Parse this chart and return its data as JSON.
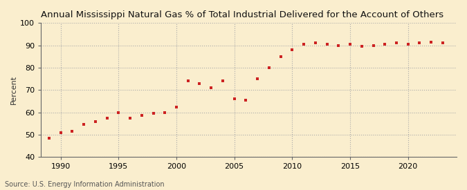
{
  "title": "Annual Mississippi Natural Gas % of Total Industrial Delivered for the Account of Others",
  "ylabel": "Percent",
  "source": "Source: U.S. Energy Information Administration",
  "years": [
    1989,
    1990,
    1991,
    1992,
    1993,
    1994,
    1995,
    1996,
    1997,
    1998,
    1999,
    2000,
    2001,
    2002,
    2003,
    2004,
    2005,
    2006,
    2007,
    2008,
    2009,
    2010,
    2011,
    2012,
    2013,
    2014,
    2015,
    2016,
    2017,
    2018,
    2019,
    2020,
    2021,
    2022,
    2023
  ],
  "values": [
    48.5,
    51.0,
    51.5,
    54.5,
    56.0,
    57.5,
    60.0,
    57.5,
    58.5,
    59.5,
    60.0,
    62.5,
    74.0,
    73.0,
    71.0,
    74.0,
    66.0,
    65.5,
    75.0,
    80.0,
    85.0,
    88.0,
    90.5,
    91.0,
    90.5,
    90.0,
    90.5,
    89.5,
    90.0,
    90.5,
    91.0,
    90.5,
    91.0,
    91.5,
    91.0
  ],
  "ylim": [
    40,
    100
  ],
  "yticks": [
    40,
    50,
    60,
    70,
    80,
    90,
    100
  ],
  "xlim": [
    1988.3,
    2024.2
  ],
  "xticks": [
    1990,
    1995,
    2000,
    2005,
    2010,
    2015,
    2020
  ],
  "marker_color": "#cc2222",
  "bg_color": "#faeece",
  "grid_color": "#aaaaaa",
  "spine_color": "#666666",
  "title_fontsize": 9.5,
  "axis_fontsize": 8,
  "source_fontsize": 7,
  "ylabel_fontsize": 8
}
